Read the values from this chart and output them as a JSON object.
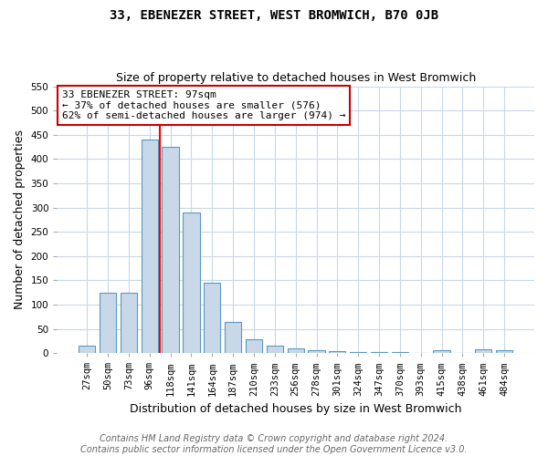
{
  "title": "33, EBENEZER STREET, WEST BROMWICH, B70 0JB",
  "subtitle": "Size of property relative to detached houses in West Bromwich",
  "xlabel": "Distribution of detached houses by size in West Bromwich",
  "ylabel": "Number of detached properties",
  "bar_labels": [
    "27sqm",
    "50sqm",
    "73sqm",
    "96sqm",
    "118sqm",
    "141sqm",
    "164sqm",
    "187sqm",
    "210sqm",
    "233sqm",
    "256sqm",
    "278sqm",
    "301sqm",
    "324sqm",
    "347sqm",
    "370sqm",
    "393sqm",
    "415sqm",
    "438sqm",
    "461sqm",
    "484sqm"
  ],
  "bar_values": [
    15,
    125,
    125,
    440,
    425,
    290,
    145,
    65,
    28,
    15,
    10,
    5,
    4,
    3,
    2,
    2,
    1,
    5,
    0,
    7,
    5
  ],
  "bar_color": "#c8d8e8",
  "bar_edge_color": "#5a9abf",
  "red_line_x": 3.5,
  "annotation_text": "33 EBENEZER STREET: 97sqm\n← 37% of detached houses are smaller (576)\n62% of semi-detached houses are larger (974) →",
  "annotation_box_color": "#ffffff",
  "annotation_box_edge_color": "#cc0000",
  "ylim": [
    0,
    550
  ],
  "yticks": [
    0,
    50,
    100,
    150,
    200,
    250,
    300,
    350,
    400,
    450,
    500,
    550
  ],
  "footnote": "Contains HM Land Registry data © Crown copyright and database right 2024.\nContains public sector information licensed under the Open Government Licence v3.0.",
  "bg_color": "#ffffff",
  "grid_color": "#c8d8e8",
  "title_fontsize": 10,
  "subtitle_fontsize": 9,
  "axis_label_fontsize": 9,
  "tick_fontsize": 7.5,
  "annotation_fontsize": 8,
  "footnote_fontsize": 7
}
